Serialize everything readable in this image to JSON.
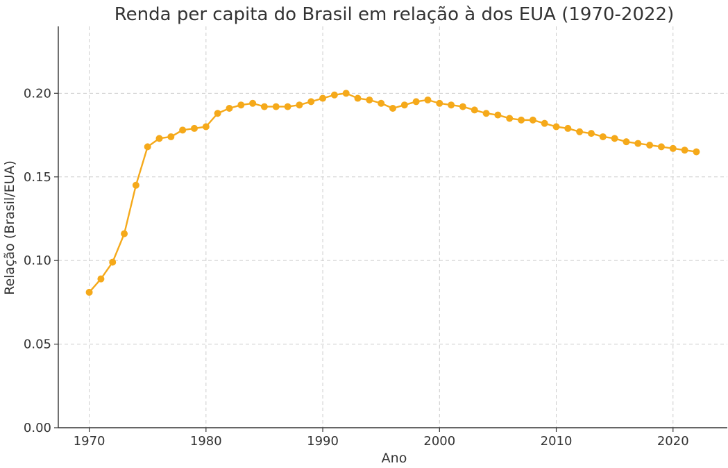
{
  "chart_data": {
    "type": "line",
    "title": "Renda per capita do Brasil em relação à dos EUA (1970-2022)",
    "xlabel": "Ano",
    "ylabel": "Relação (Brasil/EUA)",
    "xlim": [
      1967.35,
      2024.65
    ],
    "ylim": [
      0,
      0.24
    ],
    "x_ticks": [
      1970,
      1980,
      1990,
      2000,
      2010,
      2020
    ],
    "y_ticks": [
      0.0,
      0.05,
      0.1,
      0.15,
      0.2
    ],
    "y_tick_labels": [
      "0.00",
      "0.05",
      "0.10",
      "0.15",
      "0.20"
    ],
    "grid": true,
    "legend": "none",
    "series": [
      {
        "color": "#F5A91A",
        "marker": "circle",
        "x": [
          1970,
          1971,
          1972,
          1973,
          1974,
          1975,
          1976,
          1977,
          1978,
          1979,
          1980,
          1981,
          1982,
          1983,
          1984,
          1985,
          1986,
          1987,
          1988,
          1989,
          1990,
          1991,
          1992,
          1993,
          1994,
          1995,
          1996,
          1997,
          1998,
          1999,
          2000,
          2001,
          2002,
          2003,
          2004,
          2005,
          2006,
          2007,
          2008,
          2009,
          2010,
          2011,
          2012,
          2013,
          2014,
          2015,
          2016,
          2017,
          2018,
          2019,
          2020,
          2021,
          2022
        ],
        "values": [
          0.081,
          0.089,
          0.099,
          0.116,
          0.145,
          0.168,
          0.173,
          0.174,
          0.178,
          0.179,
          0.18,
          0.188,
          0.191,
          0.193,
          0.194,
          0.192,
          0.192,
          0.192,
          0.193,
          0.195,
          0.197,
          0.199,
          0.2,
          0.197,
          0.196,
          0.194,
          0.191,
          0.193,
          0.195,
          0.196,
          0.194,
          0.193,
          0.192,
          0.19,
          0.188,
          0.187,
          0.185,
          0.184,
          0.184,
          0.182,
          0.18,
          0.179,
          0.177,
          0.176,
          0.174,
          0.173,
          0.171,
          0.17,
          0.169,
          0.168,
          0.167,
          0.166,
          0.165
        ]
      }
    ]
  }
}
